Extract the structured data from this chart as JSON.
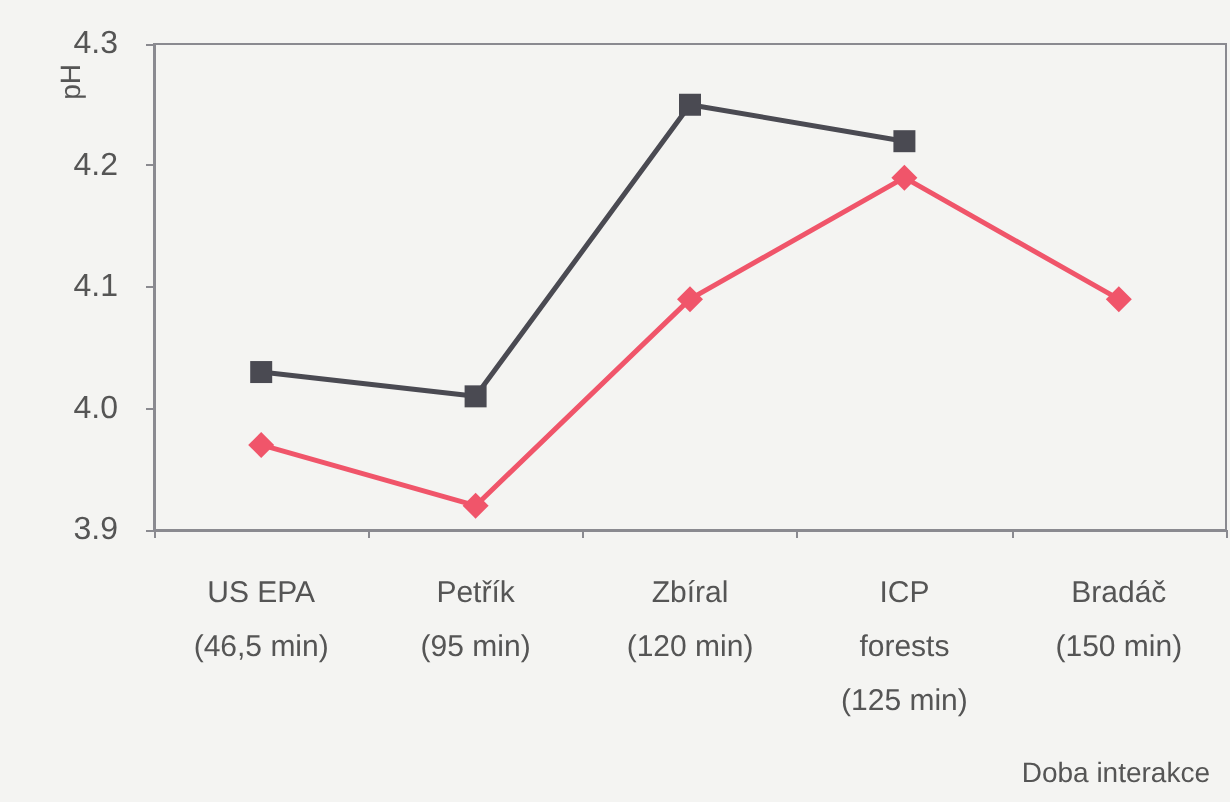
{
  "chart_data": {
    "type": "line",
    "ylabel": "pH",
    "xlabel": "Doba interakce",
    "categories": [
      "US EPA\n(46,5 min)",
      "Petřík\n(95 min)",
      "Zbíral\n(120 min)",
      "ICP\nforests\n(125 min)",
      "Bradáč\n(150 min)"
    ],
    "series": [
      {
        "color": "#4a4a52",
        "marker": "square",
        "values": [
          4.03,
          4.01,
          4.25,
          4.22,
          null
        ]
      },
      {
        "color": "#f0556a",
        "marker": "diamond",
        "values": [
          3.97,
          3.92,
          4.09,
          4.19,
          4.09
        ]
      }
    ],
    "ylim": [
      3.9,
      4.3
    ],
    "yticks": [
      3.9,
      {
        "value": 4,
        "label": "4.0"
      },
      4.1,
      4.2,
      4.3
    ],
    "grid": false,
    "line_style": "solid"
  }
}
